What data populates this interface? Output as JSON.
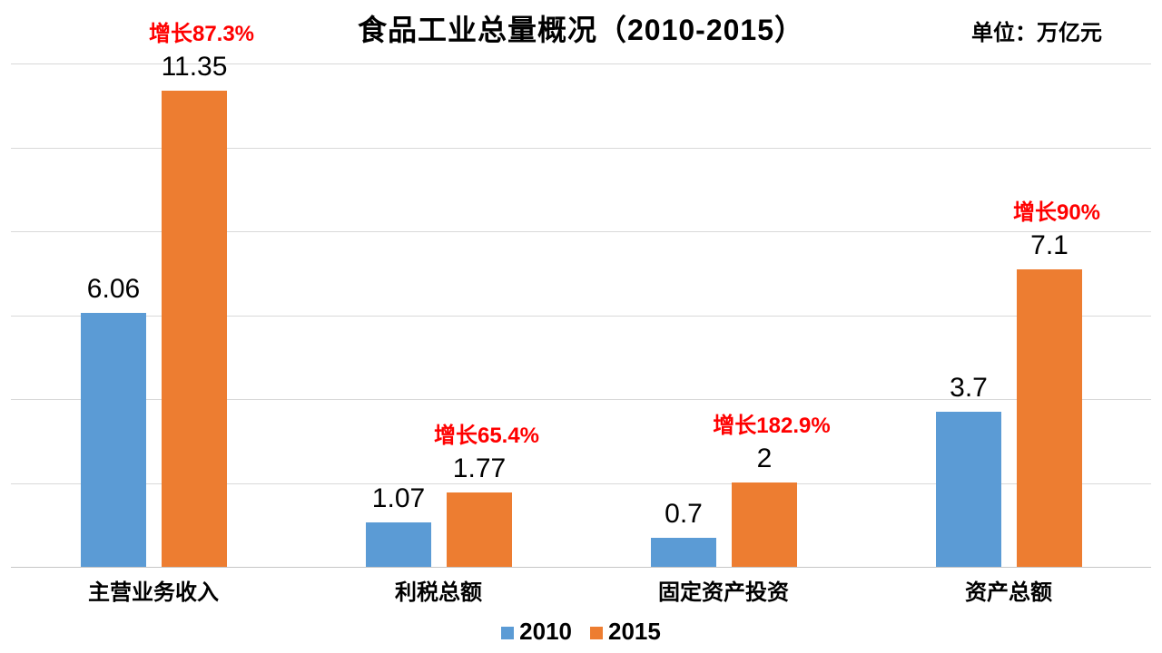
{
  "title": "食品工业总量概况（2010-2015）",
  "unit_label": "单位：万亿元",
  "colors": {
    "series_2010": "#5B9BD5",
    "series_2015": "#ED7D31",
    "growth_label": "#FF0000",
    "gridline": "#D9D9D9",
    "axis_line": "#C6C6C6",
    "text": "#000000"
  },
  "chart_data": {
    "type": "bar",
    "title": "食品工业总量概况（2010-2015）",
    "unit_label": "单位：万亿元",
    "categories": [
      "主营业务收入",
      "利税总额",
      "固定资产投资",
      "资产总额"
    ],
    "series": [
      {
        "name": "2010",
        "color": "#5B9BD5",
        "values": [
          6.06,
          1.07,
          0.7,
          3.7
        ]
      },
      {
        "name": "2015",
        "color": "#ED7D31",
        "values": [
          11.35,
          1.77,
          2,
          7.1
        ]
      }
    ],
    "growth_annotations": [
      "增长87.3%",
      "增长65.4%",
      "增长182.9%",
      "增长90%"
    ],
    "value_labels_visible": true,
    "ylim": [
      0,
      12
    ],
    "gridline_step": 2,
    "grid": true,
    "y_axis_tick_labels_visible": false,
    "legend_position": "bottom",
    "xlabel": "",
    "ylabel": ""
  }
}
